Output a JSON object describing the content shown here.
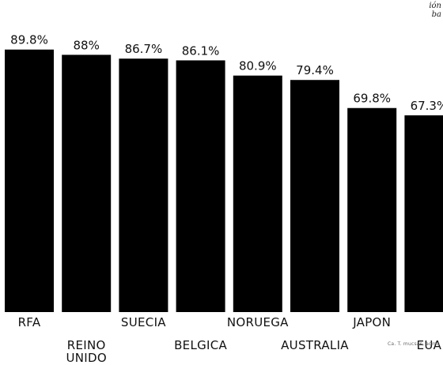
{
  "corner_note": [
    "ión",
    "ba"
  ],
  "credit": "Ca. T. mucsas, adma",
  "chart_data": {
    "type": "bar",
    "title": "",
    "xlabel": "",
    "ylabel": "",
    "ylim": [
      0,
      100
    ],
    "categories": [
      [
        "RFA"
      ],
      [
        "REINO",
        "UNIDO"
      ],
      [
        "SUECIA"
      ],
      [
        "BELGICA"
      ],
      [
        "NORUEGA"
      ],
      [
        "AUSTRALIA"
      ],
      [
        "JAPON"
      ],
      [
        "EUA"
      ]
    ],
    "values": [
      89.8,
      88,
      86.7,
      86.1,
      80.9,
      79.4,
      69.8,
      67.3
    ],
    "value_labels": [
      "89.8%",
      "88%",
      "86.7%",
      "86.1%",
      "80.9%",
      "79.4%",
      "69.8%",
      "67.3%"
    ],
    "bar_color": "#000000",
    "label_rows": [
      "upper",
      "lower",
      "upper",
      "lower",
      "upper",
      "lower",
      "upper",
      "lower"
    ],
    "grid": false,
    "legend": "none"
  }
}
